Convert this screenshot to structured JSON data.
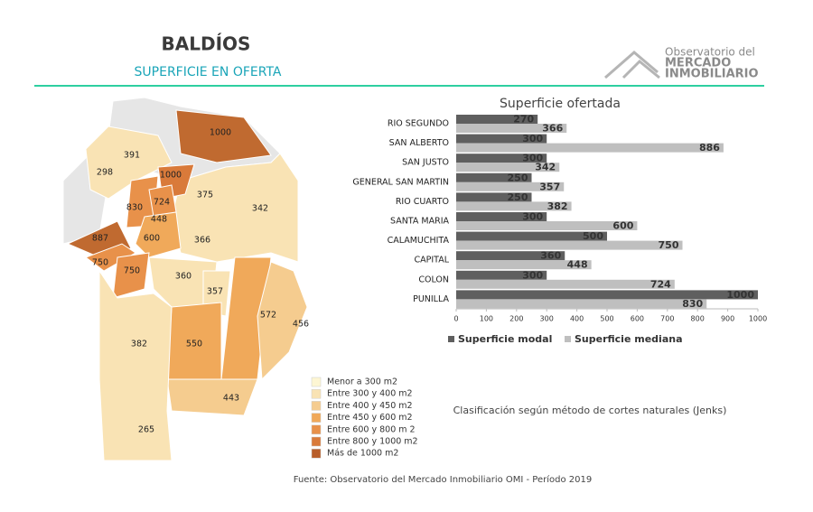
{
  "header": {
    "title": "BALDÍOS",
    "subtitle": "SUPERFICIE EN OFERTA",
    "logo": [
      "Observatorio del",
      "MERCADO",
      "INMOBILIARIO"
    ]
  },
  "map": {
    "labels": [
      1000,
      391,
      298,
      1000,
      375,
      342,
      830,
      724,
      448,
      887,
      600,
      366,
      750,
      750,
      360,
      357,
      572,
      456,
      382,
      550,
      443,
      265
    ],
    "legend": [
      {
        "label": "Menor a 300 m2",
        "color": "#fdf6d3"
      },
      {
        "label": "Entre 300 y 400 m2",
        "color": "#f9e3b4"
      },
      {
        "label": "Entre 400 y 450 m2",
        "color": "#f5cc8f"
      },
      {
        "label": "Entre 450 y 600 m2",
        "color": "#f0a95a"
      },
      {
        "label": "Entre 600 y 800 m 2",
        "color": "#e8914a"
      },
      {
        "label": "Entre 800 y 1000 m2",
        "color": "#d97a3a"
      },
      {
        "label": "Más de 1000 m2",
        "color": "#b85e2a"
      }
    ]
  },
  "chart_data": {
    "type": "bar",
    "orientation": "horizontal",
    "title": "Superficie ofertada",
    "categories": [
      "RIO SEGUNDO",
      "SAN ALBERTO",
      "SAN JUSTO",
      "GENERAL SAN MARTIN",
      "RIO CUARTO",
      "SANTA MARIA",
      "CALAMUCHITA",
      "CAPITAL",
      "COLON",
      "PUNILLA"
    ],
    "series": [
      {
        "name": "Superficie modal",
        "color": "#5f5f5f",
        "label_color": "#f5b800",
        "values": [
          270,
          300,
          300,
          250,
          250,
          300,
          500,
          360,
          300,
          1000
        ]
      },
      {
        "name": "Superficie mediana",
        "color": "#bfbfbf",
        "label_color": "#c0541e",
        "values": [
          366,
          886,
          342,
          357,
          382,
          600,
          750,
          448,
          724,
          830
        ]
      }
    ],
    "xlim": [
      0,
      1000
    ],
    "xticks": [
      0,
      100,
      200,
      300,
      400,
      500,
      600,
      700,
      800,
      900,
      1000
    ],
    "grid": false,
    "legend": "bottom"
  },
  "note": "Clasificación según método de cortes naturales (Jenks)",
  "source": "Fuente: Observatorio del Mercado Inmobiliario OMI - Período 2019"
}
